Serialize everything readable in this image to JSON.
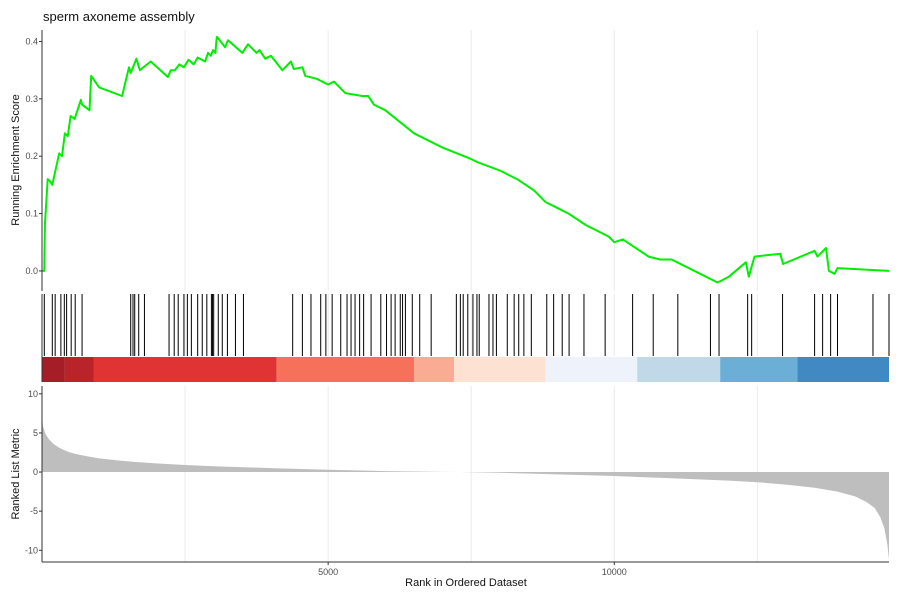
{
  "chart_data": {
    "type": "line",
    "title": "sperm axoneme assembly",
    "x_axis": {
      "label": "Rank in Ordered Dataset",
      "range": [
        0,
        14800
      ],
      "ticks": [
        5000,
        10000
      ],
      "tick_labels": [
        "5000",
        "10000"
      ],
      "minor_gridlines": [
        2500,
        7500,
        12500
      ]
    },
    "panels": [
      {
        "name": "running-enrichment-score",
        "type": "line",
        "ylabel": "Running Enrichment Score",
        "ylim": [
          -0.035,
          0.42
        ],
        "yticks": [
          0.0,
          0.1,
          0.2,
          0.3,
          0.4
        ],
        "ytick_labels": [
          "0.0",
          "0.1",
          "0.2",
          "0.3",
          "0.4"
        ],
        "line_color": "#00ee00",
        "x": [
          0,
          40,
          50,
          100,
          150,
          180,
          300,
          350,
          400,
          450,
          500,
          570,
          680,
          700,
          830,
          860,
          1000,
          1400,
          1520,
          1550,
          1650,
          1710,
          1900,
          2200,
          2250,
          2320,
          2400,
          2480,
          2560,
          2650,
          2720,
          2850,
          2900,
          2950,
          2990,
          3030,
          3050,
          3060,
          3200,
          3250,
          3500,
          3600,
          3750,
          3800,
          3900,
          4000,
          4200,
          4350,
          4400,
          4550,
          4600,
          4800,
          5000,
          5100,
          5300,
          5600,
          5700,
          5800,
          6000,
          6500,
          7000,
          7500,
          7600,
          8000,
          8100,
          8300,
          8600,
          8800,
          9000,
          9200,
          9500,
          9900,
          10000,
          10150,
          10600,
          10800,
          11000,
          11100,
          11800,
          11850,
          12000,
          12300,
          12350,
          12450,
          12900,
          12950,
          13500,
          13550,
          13700,
          13750,
          13850,
          13900,
          14800
        ],
        "y": [
          0.0,
          0.0,
          0.08,
          0.16,
          0.155,
          0.15,
          0.205,
          0.2,
          0.24,
          0.235,
          0.27,
          0.265,
          0.298,
          0.29,
          0.28,
          0.34,
          0.32,
          0.305,
          0.355,
          0.345,
          0.37,
          0.35,
          0.365,
          0.338,
          0.35,
          0.35,
          0.36,
          0.355,
          0.368,
          0.36,
          0.372,
          0.365,
          0.38,
          0.375,
          0.385,
          0.38,
          0.405,
          0.408,
          0.39,
          0.402,
          0.38,
          0.395,
          0.38,
          0.385,
          0.37,
          0.375,
          0.35,
          0.365,
          0.352,
          0.355,
          0.34,
          0.335,
          0.325,
          0.33,
          0.31,
          0.305,
          0.305,
          0.29,
          0.28,
          0.24,
          0.215,
          0.195,
          0.19,
          0.175,
          0.17,
          0.16,
          0.14,
          0.12,
          0.11,
          0.1,
          0.08,
          0.06,
          0.05,
          0.055,
          0.025,
          0.02,
          0.02,
          0.015,
          -0.02,
          -0.018,
          -0.01,
          0.015,
          -0.01,
          0.025,
          0.03,
          0.012,
          0.035,
          0.025,
          0.04,
          0.0,
          -0.005,
          0.005,
          0.0
        ]
      },
      {
        "name": "gene-hits",
        "type": "rug",
        "positions": [
          40,
          180,
          230,
          330,
          390,
          430,
          510,
          580,
          700,
          1550,
          1590,
          1620,
          1690,
          1790,
          2220,
          2310,
          2380,
          2480,
          2540,
          2610,
          2720,
          2800,
          2880,
          2960,
          2980,
          3000,
          3080,
          3150,
          3240,
          3380,
          3520,
          4380,
          4550,
          4700,
          4870,
          4960,
          5070,
          5220,
          5330,
          5400,
          5470,
          5550,
          5620,
          5750,
          5920,
          6020,
          6100,
          6170,
          6260,
          6300,
          6350,
          6470,
          6600,
          6800,
          7240,
          7310,
          7360,
          7440,
          7530,
          7600,
          7640,
          7810,
          7880,
          7940,
          8130,
          8250,
          8330,
          8420,
          8550,
          8820,
          8940,
          9090,
          9210,
          9470,
          9840,
          10320,
          10680,
          11110,
          11680,
          11830,
          12330,
          12400,
          12940,
          13500,
          13640,
          13780,
          13900,
          14520,
          14800
        ]
      },
      {
        "name": "rank-color-bar",
        "type": "heatmap",
        "segments": [
          {
            "start": 0,
            "end": 400,
            "color": "#a51d27"
          },
          {
            "start": 400,
            "end": 900,
            "color": "#b8242a"
          },
          {
            "start": 900,
            "end": 4100,
            "color": "#e03434"
          },
          {
            "start": 4100,
            "end": 6500,
            "color": "#f6715a"
          },
          {
            "start": 6500,
            "end": 7200,
            "color": "#f9ab93"
          },
          {
            "start": 7200,
            "end": 8800,
            "color": "#fde1d2"
          },
          {
            "start": 8800,
            "end": 10400,
            "color": "#eef2fb"
          },
          {
            "start": 10400,
            "end": 11850,
            "color": "#c0d8e8"
          },
          {
            "start": 11850,
            "end": 13200,
            "color": "#6baed6"
          },
          {
            "start": 13200,
            "end": 14800,
            "color": "#4089c3"
          }
        ]
      },
      {
        "name": "ranked-list-metric",
        "type": "area",
        "ylabel": "Ranked List Metric",
        "ylim": [
          -11.5,
          11
        ],
        "yticks": [
          10,
          5,
          0,
          -5,
          -10
        ],
        "ytick_labels": [
          "10",
          "5",
          "0",
          "-5",
          "-10"
        ],
        "fill_color": "#bebebe",
        "x": [
          0,
          20,
          60,
          120,
          200,
          300,
          450,
          600,
          800,
          1000,
          1300,
          1600,
          2000,
          2500,
          3000,
          4000,
          5000,
          6000,
          7000,
          7300,
          8000,
          9000,
          10000,
          11000,
          12000,
          12500,
          13000,
          13500,
          13900,
          14200,
          14400,
          14550,
          14650,
          14720,
          14770,
          14800
        ],
        "y": [
          7.0,
          5.8,
          4.9,
          4.2,
          3.6,
          3.1,
          2.6,
          2.3,
          2.0,
          1.75,
          1.5,
          1.3,
          1.1,
          0.9,
          0.75,
          0.5,
          0.3,
          0.12,
          0.02,
          0.0,
          -0.1,
          -0.3,
          -0.5,
          -0.8,
          -1.1,
          -1.3,
          -1.6,
          -2.0,
          -2.5,
          -3.1,
          -3.8,
          -4.6,
          -5.8,
          -7.2,
          -9.2,
          -11.2
        ]
      }
    ]
  }
}
